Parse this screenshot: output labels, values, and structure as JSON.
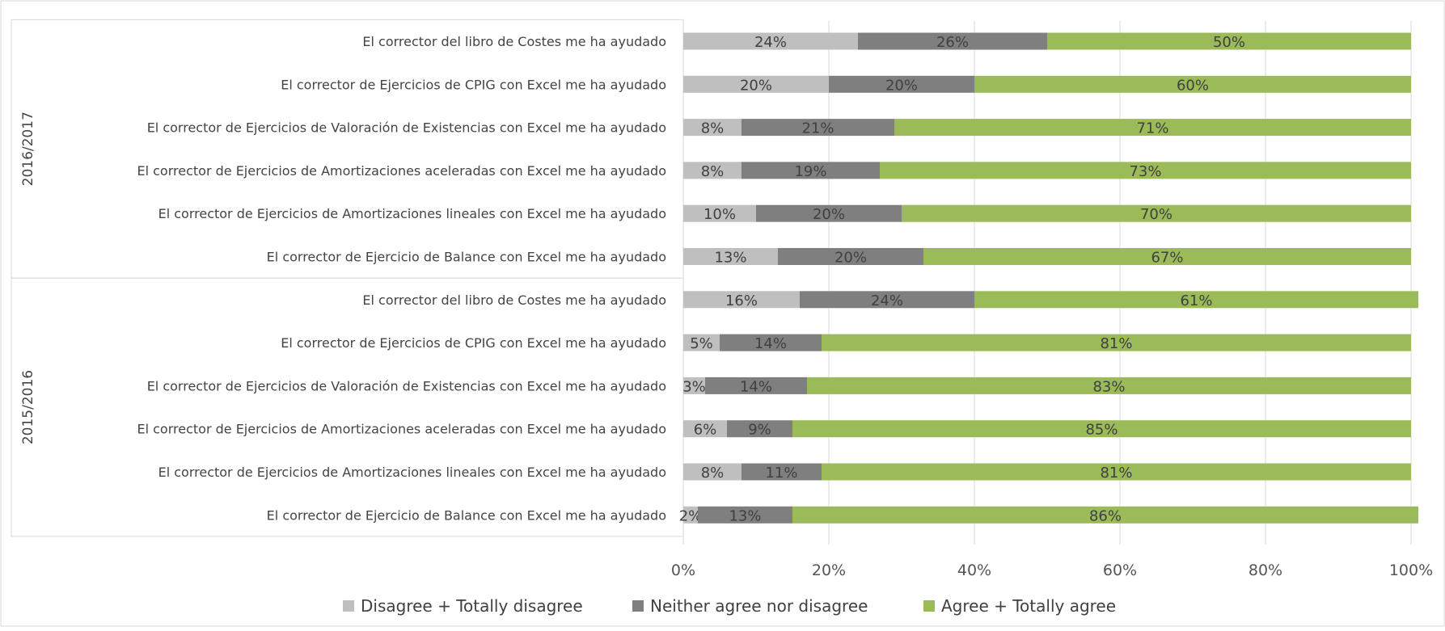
{
  "chart_data": {
    "type": "bar",
    "orientation": "horizontal",
    "stacked": true,
    "title": "",
    "xlabel": "",
    "ylabel": "",
    "xlim": [
      0,
      100
    ],
    "x_ticks": [
      "0%",
      "20%",
      "40%",
      "60%",
      "80%",
      "100%"
    ],
    "grid": true,
    "legend_position": "bottom",
    "series": [
      {
        "name": "Disagree + Totally disagree",
        "color": "#bfbfbf"
      },
      {
        "name": "Neither agree nor disagree",
        "color": "#7f7f7f"
      },
      {
        "name": "Agree + Totally agree",
        "color": "#9bbb59"
      }
    ],
    "groups": [
      {
        "label": "2016/2017",
        "rows": [
          {
            "category": "El corrector del libro de Costes me ha ayudado",
            "values": [
              24,
              26,
              50
            ],
            "labels": [
              "24%",
              "26%",
              "50%"
            ]
          },
          {
            "category": "El corrector de Ejercicios de CPIG con Excel me ha ayudado",
            "values": [
              20,
              20,
              60
            ],
            "labels": [
              "20%",
              "20%",
              "60%"
            ]
          },
          {
            "category": "El corrector de Ejercicios de Valoración de Existencias con Excel me ha ayudado",
            "values": [
              8,
              21,
              71
            ],
            "labels": [
              "8%",
              "21%",
              "71%"
            ]
          },
          {
            "category": "El corrector de Ejercicios de Amortizaciones aceleradas con Excel me ha ayudado",
            "values": [
              8,
              19,
              73
            ],
            "labels": [
              "8%",
              "19%",
              "73%"
            ]
          },
          {
            "category": "El corrector de Ejercicios de Amortizaciones lineales con Excel me ha ayudado",
            "values": [
              10,
              20,
              70
            ],
            "labels": [
              "10%",
              "20%",
              "70%"
            ]
          },
          {
            "category": "El corrector de Ejercicio de Balance con Excel me ha ayudado",
            "values": [
              13,
              20,
              67
            ],
            "labels": [
              "13%",
              "20%",
              "67%"
            ]
          }
        ]
      },
      {
        "label": "2015/2016",
        "rows": [
          {
            "category": "El corrector del libro de Costes me ha ayudado",
            "values": [
              16,
              24,
              61
            ],
            "labels": [
              "16%",
              "24%",
              "61%"
            ]
          },
          {
            "category": "El corrector de Ejercicios de CPIG con Excel me ha ayudado",
            "values": [
              5,
              14,
              81
            ],
            "labels": [
              "5%",
              "14%",
              "81%"
            ]
          },
          {
            "category": "El corrector de Ejercicios de Valoración de Existencias con Excel me ha ayudado",
            "values": [
              3,
              14,
              83
            ],
            "labels": [
              "3%",
              "14%",
              "83%"
            ]
          },
          {
            "category": "El corrector de Ejercicios de Amortizaciones aceleradas con Excel me ha ayudado",
            "values": [
              6,
              9,
              85
            ],
            "labels": [
              "6%",
              "9%",
              "85%"
            ]
          },
          {
            "category": "El corrector de Ejercicios de Amortizaciones lineales con Excel me ha ayudado",
            "values": [
              8,
              11,
              81
            ],
            "labels": [
              "8%",
              "11%",
              "81%"
            ]
          },
          {
            "category": "El corrector de Ejercicio de Balance con Excel me ha ayudado",
            "values": [
              2,
              13,
              86
            ],
            "labels": [
              "2%",
              "13%",
              "86%"
            ]
          }
        ]
      }
    ]
  }
}
